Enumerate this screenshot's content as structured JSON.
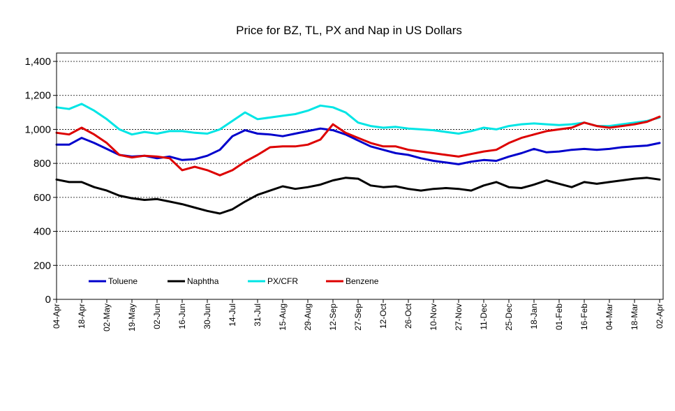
{
  "chart_data": {
    "type": "line",
    "title": "Price for BZ, TL, PX and Nap in US Dollars",
    "xlabel": "",
    "ylabel": "",
    "ylim": [
      0,
      1400
    ],
    "yticks": [
      0,
      200,
      400,
      600,
      800,
      1000,
      1200,
      1400
    ],
    "ytick_labels": [
      "0",
      "200",
      "400",
      "600",
      "800",
      "1,000",
      "1,200",
      "1,400"
    ],
    "grid": "horizontal dashed",
    "legend_position": "bottom-left inside",
    "xlim": [
      0,
      24
    ],
    "x_tick_labels": [
      "04-Apr",
      "18-Apr",
      "02-May",
      "19-May",
      "02-Jun",
      "16-Jun",
      "30-Jun",
      "14-Jul",
      "31-Jul",
      "15-Aug",
      "29-Aug",
      "12-Sep",
      "27-Sep",
      "12-Oct",
      "26-Oct",
      "10-Nov",
      "27-Nov",
      "11-Dec",
      "25-Dec",
      "18-Jan",
      "01-Feb",
      "16-Feb",
      "04-Mar",
      "18-Mar",
      "02-Apr"
    ],
    "x": [
      0,
      0.5,
      1,
      1.5,
      2,
      2.5,
      3,
      3.5,
      4,
      4.5,
      5,
      5.5,
      6,
      6.5,
      7,
      7.5,
      8,
      8.5,
      9,
      9.5,
      10,
      10.5,
      11,
      11.5,
      12,
      12.5,
      13,
      13.5,
      14,
      14.5,
      15,
      15.5,
      16,
      16.5,
      17,
      17.5,
      18,
      18.5,
      19,
      19.5,
      20,
      20.5,
      21,
      21.5,
      22,
      22.5,
      23,
      23.5,
      24
    ],
    "series": [
      {
        "name": "Toluene",
        "color": "#0000cc",
        "values": [
          910,
          910,
          950,
          920,
          885,
          850,
          840,
          845,
          830,
          840,
          820,
          825,
          845,
          880,
          960,
          995,
          975,
          970,
          960,
          975,
          990,
          1005,
          995,
          970,
          935,
          900,
          880,
          860,
          850,
          830,
          815,
          805,
          795,
          810,
          820,
          815,
          840,
          860,
          885,
          865,
          870,
          880,
          885,
          880,
          885,
          895,
          900,
          905,
          920
        ]
      },
      {
        "name": "Naphtha",
        "color": "#000000",
        "values": [
          705,
          690,
          690,
          660,
          640,
          610,
          595,
          585,
          590,
          575,
          560,
          540,
          520,
          505,
          530,
          575,
          615,
          640,
          665,
          650,
          660,
          675,
          700,
          715,
          710,
          670,
          660,
          665,
          650,
          640,
          650,
          655,
          650,
          640,
          670,
          690,
          660,
          655,
          675,
          700,
          680,
          660,
          690,
          680,
          690,
          700,
          710,
          715,
          705
        ]
      },
      {
        "name": "PX/CFR",
        "color": "#00e5e5",
        "values": [
          1130,
          1120,
          1150,
          1110,
          1060,
          1000,
          970,
          985,
          975,
          990,
          990,
          980,
          975,
          1000,
          1050,
          1100,
          1060,
          1070,
          1080,
          1090,
          1110,
          1140,
          1130,
          1100,
          1040,
          1020,
          1010,
          1015,
          1005,
          1000,
          995,
          985,
          975,
          990,
          1010,
          1000,
          1020,
          1030,
          1035,
          1030,
          1025,
          1030,
          1040,
          1020,
          1020,
          1030,
          1040,
          1050,
          1070
        ]
      },
      {
        "name": "Benzene",
        "color": "#dd0000",
        "values": [
          980,
          970,
          1010,
          970,
          920,
          850,
          835,
          845,
          840,
          830,
          760,
          780,
          760,
          730,
          760,
          810,
          850,
          895,
          900,
          900,
          910,
          940,
          1030,
          980,
          950,
          920,
          900,
          900,
          880,
          870,
          860,
          850,
          840,
          855,
          870,
          880,
          920,
          950,
          970,
          990,
          1000,
          1010,
          1040,
          1020,
          1010,
          1020,
          1030,
          1045,
          1075
        ]
      }
    ]
  }
}
